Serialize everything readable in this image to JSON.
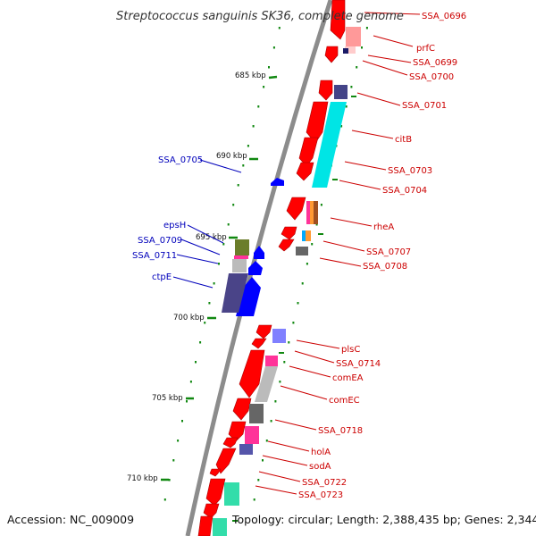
{
  "title": "Streptococcus sanguinis SK36, complete genome",
  "footer": {
    "accession": "Accession: NC_009009",
    "summary": "Topology: circular; Length: 2,388,435 bp; Genes: 2,344"
  },
  "colors": {
    "backbone": "#888888",
    "forward_label": "#cc0000",
    "reverse_label": "#0000bb",
    "tick_green": "#118811",
    "cds_red": "#ff0000",
    "cds_blue": "#0000ff"
  },
  "scale": {
    "ticks": [
      "685 kbp",
      "690 kbp",
      "695 kbp",
      "700 kbp",
      "705 kbp",
      "710 kbp"
    ]
  },
  "labels": {
    "forward": [
      "SSA_0696",
      "prfC",
      "SSA_0699",
      "SSA_0700",
      "SSA_0701",
      "citB",
      "SSA_0703",
      "SSA_0704",
      "rheA",
      "SSA_0707",
      "SSA_0708",
      "plsC",
      "SSA_0714",
      "comEA",
      "comEC",
      "SSA_0718",
      "holA",
      "sodA",
      "SSA_0722",
      "SSA_0723"
    ],
    "reverse": [
      "SSA_0705",
      "epsH",
      "SSA_0709",
      "SSA_0711",
      "ctpE"
    ]
  }
}
